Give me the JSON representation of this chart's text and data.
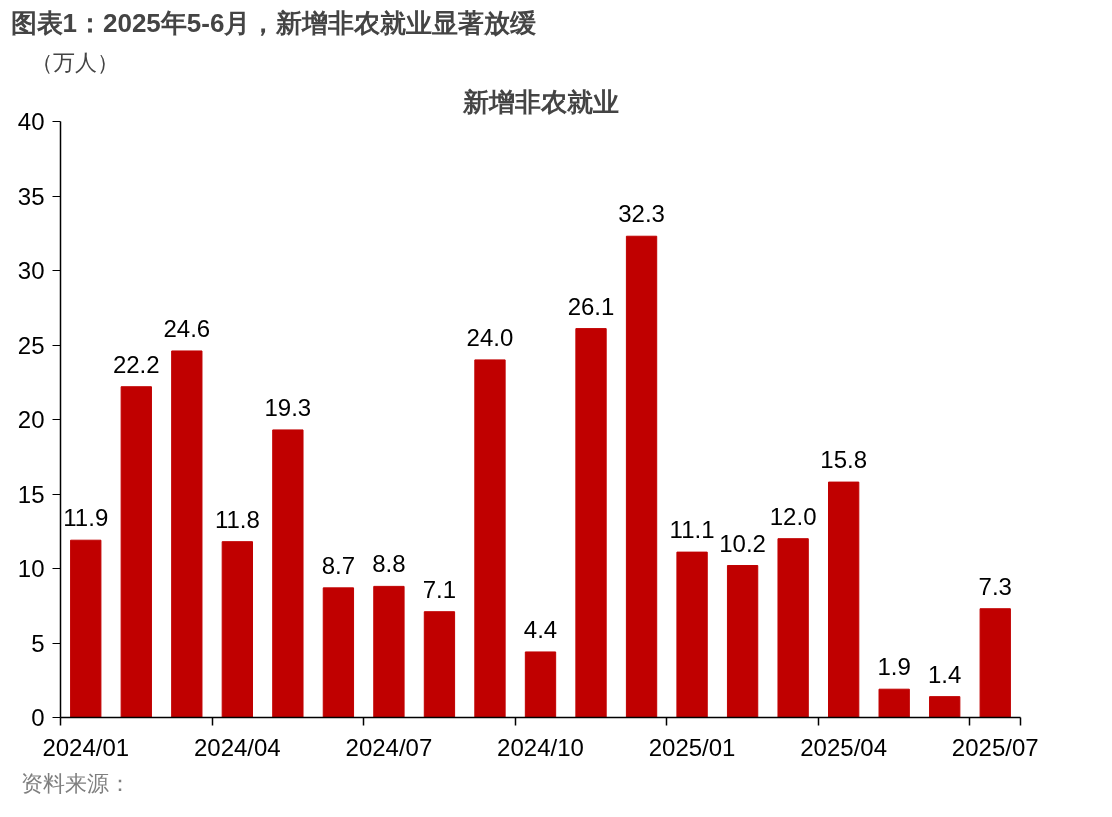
{
  "chart_data": {
    "type": "bar",
    "title": "图表1：2025年5-6月，新增非农就业显著放缓",
    "subtitle": "新增非农就业",
    "ylabel": "（万人）",
    "categories": [
      "2024/01",
      null,
      null,
      "2024/04",
      null,
      null,
      "2024/07",
      null,
      null,
      "2024/10",
      null,
      null,
      "2025/01",
      null,
      null,
      "2025/04",
      null,
      null,
      "2025/07"
    ],
    "values": [
      11.9,
      22.2,
      24.6,
      11.8,
      19.3,
      8.7,
      8.8,
      7.1,
      24.0,
      4.4,
      26.1,
      32.3,
      11.1,
      10.2,
      12.0,
      15.8,
      1.9,
      1.4,
      7.3
    ],
    "color": "#c00000",
    "ylim": [
      0,
      40
    ],
    "yticks": [
      0,
      5,
      10,
      15,
      20,
      25,
      30,
      35,
      40
    ],
    "value_labels": [
      "11.9",
      "22.2",
      "24.6",
      "11.8",
      "19.3",
      "8.7",
      "8.8",
      "7.1",
      "24.0",
      "4.4",
      "26.1",
      "32.3",
      "11.1",
      "10.2",
      "12.0",
      "15.8",
      "1.9",
      "1.4",
      "7.3"
    ],
    "annotations": [
      "资料来源："
    ]
  }
}
